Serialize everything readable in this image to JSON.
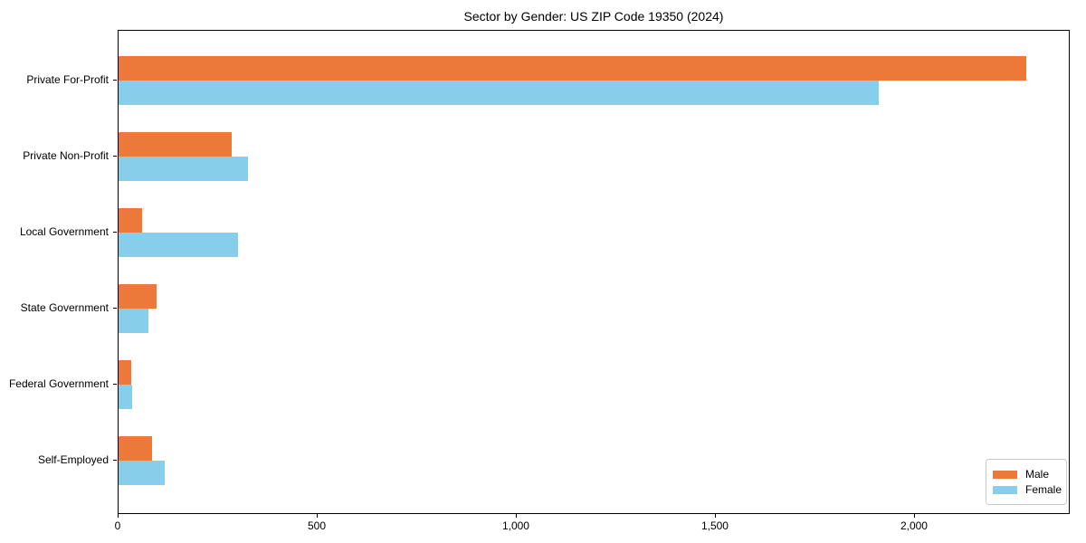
{
  "chart_data": {
    "type": "bar",
    "orientation": "horizontal",
    "title": "Sector by Gender: US ZIP Code 19350 (2024)",
    "categories": [
      "Private For-Profit",
      "Private Non-Profit",
      "Local Government",
      "State Government",
      "Federal Government",
      "Self-Employed"
    ],
    "series": [
      {
        "name": "Male",
        "color": "#EC7839",
        "values": [
          2280,
          285,
          60,
          95,
          32,
          85
        ]
      },
      {
        "name": "Female",
        "color": "#87CEEB",
        "values": [
          1910,
          325,
          300,
          75,
          34,
          115
        ]
      }
    ],
    "xlabel": "",
    "ylabel": "",
    "xlim": [
      0,
      2391
    ],
    "xticks": [
      0,
      500,
      1000,
      1500,
      2000
    ],
    "xtick_labels": [
      "0",
      "500",
      "1,000",
      "1,500",
      "2,000"
    ],
    "legend_position": "lower right",
    "grid": false
  }
}
